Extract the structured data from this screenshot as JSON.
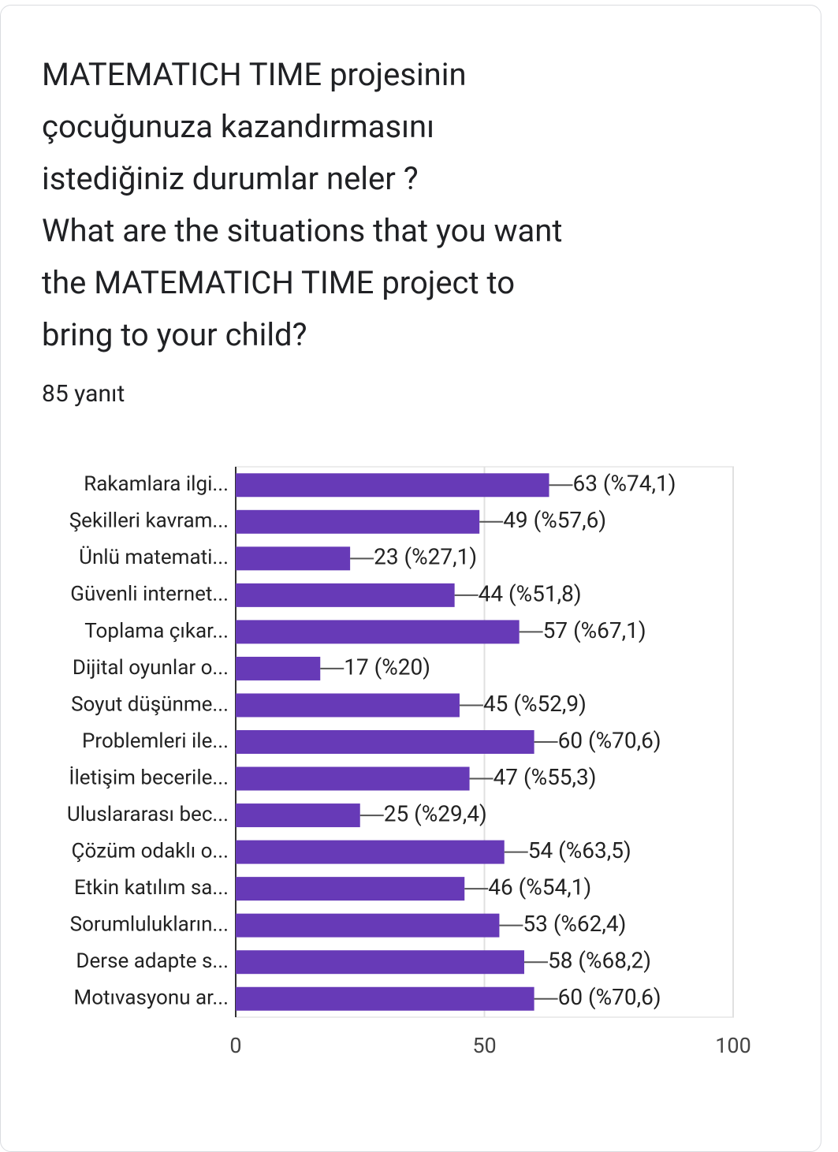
{
  "chart_data": {
    "type": "bar",
    "orientation": "horizontal",
    "title": "MATEMATICH TIME projesinin çocuğunuza kazandırmasını istediğiniz durumlar neler ?\nWhat are the situations that you want the MATEMATICH TIME project to bring to your child?",
    "subtitle": "85 yanıt",
    "categories": [
      "Rakamlara ilgi...",
      "Şekilleri kavram...",
      "Ünlü matemati...",
      "Güvenli internet...",
      "Toplama çıkar...",
      "Dijital oyunlar o...",
      "Soyut düşünme...",
      "Problemleri ile...",
      "İletişim becerile...",
      "Uluslararası bec...",
      "Çözüm odaklı o...",
      "Etkin katılım sa...",
      "Sorumlulukların...",
      "Derse adapte s...",
      "Motıvasyonu ar..."
    ],
    "values": [
      63,
      49,
      23,
      44,
      57,
      17,
      45,
      60,
      47,
      25,
      54,
      46,
      53,
      58,
      60
    ],
    "value_labels": [
      "63 (%74,1)",
      "49 (%57,6)",
      "23 (%27,1)",
      "44 (%51,8)",
      "57 (%67,1)",
      "17 (%20)",
      "45 (%52,9)",
      "60 (%70,6)",
      "47 (%55,3)",
      "25 (%29,4)",
      "54 (%63,5)",
      "46 (%54,1)",
      "53 (%62,4)",
      "58 (%68,2)",
      "60 (%70,6)"
    ],
    "color": "#673ab7",
    "xlim": [
      0,
      100
    ],
    "xticks": [
      0,
      50,
      100
    ],
    "grid": true
  }
}
